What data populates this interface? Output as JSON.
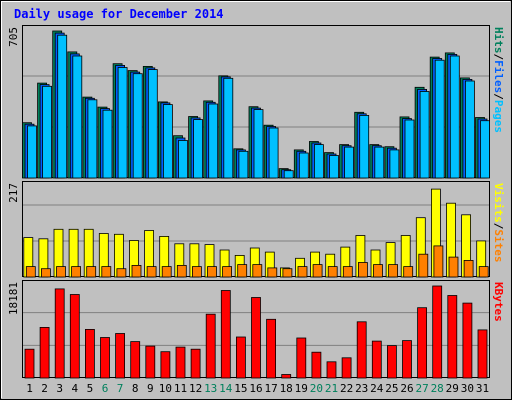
{
  "chart_data": {
    "type": "bar",
    "title": "Daily usage for December 2014",
    "categories": [
      "1",
      "2",
      "3",
      "4",
      "5",
      "6",
      "7",
      "8",
      "9",
      "10",
      "11",
      "12",
      "13",
      "14",
      "15",
      "16",
      "17",
      "18",
      "19",
      "20",
      "21",
      "22",
      "23",
      "24",
      "25",
      "26",
      "27",
      "28",
      "29",
      "30",
      "31"
    ],
    "weekend_days": [
      "6",
      "7",
      "13",
      "14",
      "20",
      "21",
      "27",
      "28"
    ],
    "panels": [
      {
        "name": "top",
        "ymax": 705,
        "ymax_label": "705",
        "right_label_parts": [
          "Hits",
          "/",
          "Files",
          "/",
          "Pages"
        ],
        "series": [
          {
            "name": "Hits",
            "color": "#00805c",
            "values": [
              265,
              455,
              705,
              605,
              388,
              340,
              548,
              515,
              535,
              365,
              203,
              295,
              370,
              490,
              140,
              342,
              253,
              45,
              135,
              175,
              122,
              160,
              315,
              160,
              150,
              293,
              435,
              580,
              600,
              480,
              290
            ]
          },
          {
            "name": "Files",
            "color": "#0060ff",
            "values": [
              258,
              448,
              695,
              595,
              382,
              333,
              540,
              508,
              528,
              360,
              192,
              288,
              363,
              485,
              135,
              335,
              247,
              40,
              128,
              168,
              115,
              155,
              308,
              155,
              143,
              285,
              425,
              573,
              593,
              473,
              283
            ]
          },
          {
            "name": "Pages",
            "color": "#00c0ff",
            "values": [
              250,
              440,
              685,
              585,
              375,
              325,
              530,
              500,
              520,
              352,
              180,
              280,
              355,
              478,
              128,
              328,
              240,
              35,
              120,
              160,
              108,
              148,
              300,
              148,
              135,
              278,
              415,
              565,
              585,
              465,
              275
            ]
          }
        ]
      },
      {
        "name": "middle",
        "ymax": 217,
        "ymax_label": "217",
        "right_label_parts": [
          "Visits",
          "/",
          "Sites"
        ],
        "series": [
          {
            "name": "Visits",
            "color": "#ffff00",
            "values": [
              95,
              92,
              115,
              115,
              115,
              105,
              103,
              88,
              112,
              98,
              80,
              80,
              78,
              65,
              52,
              70,
              60,
              22,
              45,
              60,
              55,
              72,
              100,
              65,
              83,
              100,
              143,
              212,
              178,
              150,
              87
            ]
          },
          {
            "name": "Sites",
            "color": "#ff8000",
            "values": [
              25,
              20,
              25,
              25,
              25,
              25,
              20,
              28,
              25,
              25,
              28,
              25,
              25,
              25,
              30,
              30,
              22,
              20,
              25,
              30,
              25,
              25,
              35,
              30,
              30,
              25,
              55,
              75,
              48,
              40,
              25
            ]
          }
        ]
      },
      {
        "name": "bottom",
        "ymax": 18181,
        "ymax_label": "18181",
        "right_label_parts": [
          "KBytes"
        ],
        "series": [
          {
            "name": "KBytes",
            "color": "#ff0000",
            "values": [
              5700,
              10000,
              17600,
              16500,
              9600,
              8000,
              8800,
              7200,
              6300,
              5200,
              6100,
              5700,
              12600,
              17300,
              8100,
              15900,
              11600,
              700,
              7900,
              5100,
              3200,
              4000,
              11100,
              7300,
              6400,
              7400,
              13900,
              18181,
              16300,
              14800,
              9500
            ]
          }
        ]
      }
    ],
    "colors": {
      "background": "#c0c0c0",
      "title": "#0000ff",
      "grid": "#808080",
      "weekend_label": "#00805c",
      "weekday_label": "#000000",
      "kbytes_label": "#ff0000"
    }
  }
}
